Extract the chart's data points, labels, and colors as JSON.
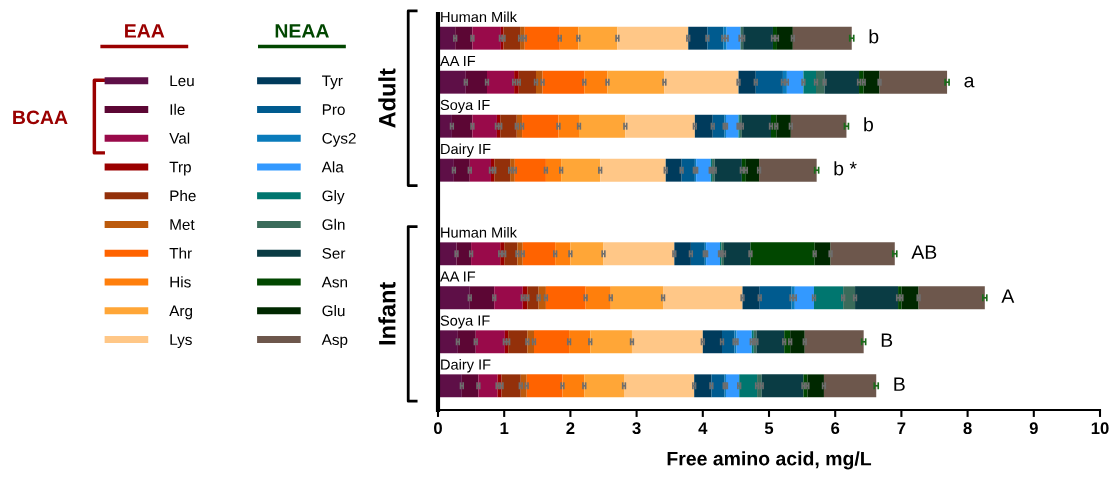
{
  "chart_data": {
    "type": "bar",
    "orientation": "horizontal",
    "stacked": true,
    "categories": [
      "Human Milk",
      "AA IF",
      "Soya IF",
      "Dairy IF",
      "Human Milk",
      "AA IF",
      "Soya IF",
      "Dairy IF"
    ],
    "series": [
      {
        "name": "Leu",
        "color": "#5e0f47",
        "values": [
          0.26,
          0.42,
          0.21,
          0.24,
          0.28,
          0.48,
          0.3,
          0.36
        ],
        "errors": [
          0.02,
          0.02,
          0.02,
          0.02,
          0.02,
          0.02,
          0.02,
          0.02
        ]
      },
      {
        "name": "Ile",
        "color": "#5c0634",
        "values": [
          0.26,
          0.32,
          0.31,
          0.24,
          0.22,
          0.37,
          0.27,
          0.25
        ],
        "errors": [
          0.02,
          0.02,
          0.02,
          0.02,
          0.02,
          0.02,
          0.02,
          0.02
        ]
      },
      {
        "name": "Val",
        "color": "#990a4a",
        "values": [
          0.43,
          0.41,
          0.37,
          0.32,
          0.44,
          0.43,
          0.44,
          0.29
        ],
        "errors": [
          0.02,
          0.02,
          0.02,
          0.02,
          0.02,
          0.02,
          0.02,
          0.02
        ]
      },
      {
        "name": "Trp",
        "color": "#9a0000",
        "values": [
          0.04,
          0.07,
          0.05,
          0.05,
          0.06,
          0.07,
          0.05,
          0.06
        ],
        "errors": [
          0.02,
          0.02,
          0.02,
          0.02,
          0.02,
          0.02,
          0.02,
          0.02
        ]
      },
      {
        "name": "Phe",
        "color": "#93300a",
        "values": [
          0.25,
          0.26,
          0.25,
          0.24,
          0.2,
          0.17,
          0.29,
          0.29
        ],
        "errors": [
          0.02,
          0.02,
          0.02,
          0.02,
          0.02,
          0.02,
          0.02,
          0.02
        ]
      },
      {
        "name": "Met",
        "color": "#bc5a0c",
        "values": [
          0.07,
          0.1,
          0.08,
          0.07,
          0.08,
          0.11,
          0.1,
          0.09
        ],
        "errors": [
          0.02,
          0.02,
          0.02,
          0.02,
          0.02,
          0.02,
          0.02,
          0.02
        ]
      },
      {
        "name": "Thr",
        "color": "#ff6300",
        "values": [
          0.53,
          0.63,
          0.55,
          0.47,
          0.49,
          0.6,
          0.53,
          0.54
        ],
        "errors": [
          0.02,
          0.02,
          0.02,
          0.02,
          0.02,
          0.02,
          0.02,
          0.02
        ]
      },
      {
        "name": "His",
        "color": "#ff7f0c",
        "values": [
          0.28,
          0.35,
          0.31,
          0.23,
          0.23,
          0.38,
          0.32,
          0.33
        ],
        "errors": [
          0.02,
          0.02,
          0.02,
          0.02,
          0.02,
          0.02,
          0.02,
          0.02
        ]
      },
      {
        "name": "Arg",
        "color": "#ffa637",
        "values": [
          0.59,
          0.86,
          0.7,
          0.59,
          0.5,
          0.79,
          0.63,
          0.6
        ],
        "errors": [
          0.02,
          0.02,
          0.02,
          0.02,
          0.02,
          0.02,
          0.02,
          0.02
        ]
      },
      {
        "name": "Lys",
        "color": "#ffc787",
        "values": [
          1.07,
          1.12,
          1.05,
          0.99,
          1.07,
          1.2,
          1.07,
          1.06
        ],
        "errors": [
          0.02,
          0.02,
          0.02,
          0.02,
          0.02,
          0.02,
          0.02,
          0.02
        ]
      },
      {
        "name": "Tyr",
        "color": "#003b5c",
        "values": [
          0.29,
          0.26,
          0.27,
          0.24,
          0.25,
          0.26,
          0.29,
          0.26
        ],
        "errors": [
          0.02,
          0.02,
          0.02,
          0.02,
          0.02,
          0.02,
          0.02,
          0.02
        ]
      },
      {
        "name": "Pro",
        "color": "#005b8f",
        "values": [
          0.24,
          0.41,
          0.18,
          0.2,
          0.21,
          0.48,
          0.19,
          0.2
        ],
        "errors": [
          0.02,
          0.02,
          0.02,
          0.02,
          0.02,
          0.02,
          0.02,
          0.02
        ]
      },
      {
        "name": "Cys2",
        "color": "#0a7bbb",
        "values": [
          0.05,
          0.06,
          0.02,
          0.02,
          0.02,
          0.05,
          0.03,
          0.02
        ],
        "errors": [
          0.02,
          0.02,
          0.02,
          0.02,
          0.02,
          0.02,
          0.02,
          0.02
        ]
      },
      {
        "name": "Ala",
        "color": "#3399ff",
        "values": [
          0.21,
          0.25,
          0.19,
          0.22,
          0.21,
          0.29,
          0.23,
          0.2
        ],
        "errors": [
          0.02,
          0.02,
          0.02,
          0.02,
          0.02,
          0.02,
          0.02,
          0.02
        ]
      },
      {
        "name": "Gly",
        "color": "#00766f",
        "values": [
          null,
          0.19,
          0.02,
          0.02,
          0.02,
          0.44,
          0.03,
          0.27
        ],
        "errors": [
          null,
          0.02,
          0.02,
          0.02,
          0.02,
          0.02,
          0.02,
          0.02
        ]
      },
      {
        "name": "Gln",
        "color": "#3a6b5a",
        "values": [
          0.04,
          0.13,
          0.03,
          0.04,
          0.04,
          0.18,
          0.04,
          0.07
        ],
        "errors": [
          0.02,
          0.02,
          0.02,
          0.02,
          0.02,
          0.02,
          0.02,
          0.02
        ]
      },
      {
        "name": "Ser",
        "color": "#0a3c44",
        "values": [
          0.45,
          0.52,
          0.44,
          0.41,
          0.4,
          0.65,
          0.42,
          0.63
        ],
        "errors": [
          0.02,
          0.02,
          0.02,
          0.02,
          0.02,
          0.02,
          0.02,
          0.02
        ]
      },
      {
        "name": "Asn",
        "color": "#014700",
        "values": [
          0.06,
          0.07,
          0.08,
          0.06,
          0.97,
          0.05,
          0.09,
          0.06
        ],
        "errors": [
          0.02,
          0.02,
          0.02,
          0.02,
          0.02,
          0.02,
          0.02,
          0.02
        ]
      },
      {
        "name": "Glu",
        "color": "#002800",
        "values": [
          0.24,
          0.24,
          0.22,
          0.2,
          0.24,
          0.26,
          0.22,
          0.25
        ],
        "errors": [
          0.02,
          0.02,
          0.02,
          0.02,
          0.02,
          0.02,
          0.02,
          0.02
        ]
      },
      {
        "name": "Asp",
        "color": "#6d574c",
        "values": [
          0.89,
          1.02,
          0.84,
          0.87,
          0.97,
          1.0,
          0.89,
          0.79
        ],
        "errors": [
          0.03,
          0.03,
          0.03,
          0.03,
          0.03,
          0.03,
          0.03,
          0.03
        ]
      }
    ],
    "xlabel": "Free amino acid, mg/L",
    "xlim": [
      0,
      10
    ],
    "xticks": [
      0,
      1,
      2,
      3,
      4,
      5,
      6,
      7,
      8,
      9,
      10
    ],
    "legend": "left",
    "grid": false,
    "annotations": [
      "b",
      "a",
      "b",
      "b *",
      "AB",
      "A",
      "B",
      "B",
      "Adult",
      "Infant",
      "EAA",
      "NEAA",
      "BCAA"
    ]
  }
}
